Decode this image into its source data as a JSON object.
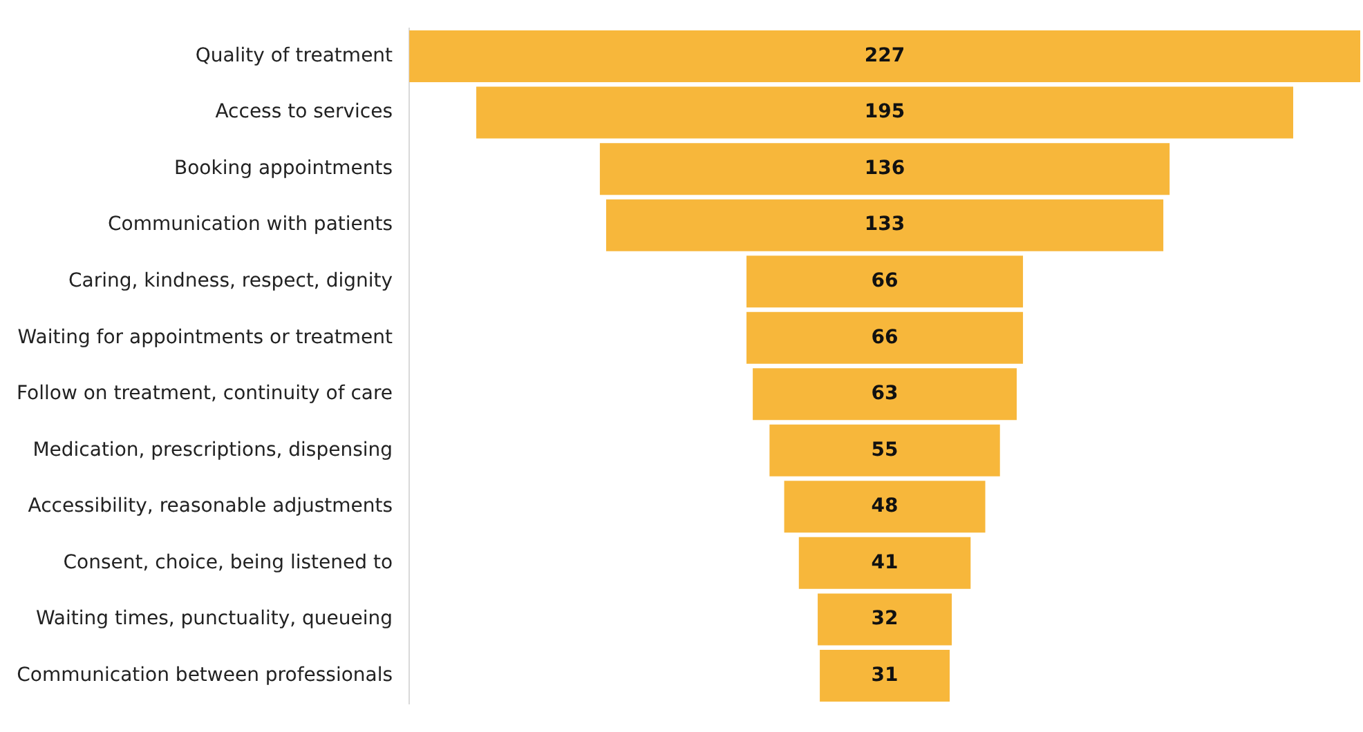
{
  "chart_data": {
    "type": "other",
    "categories": [
      "Quality of treatment",
      "Access to services",
      "Booking appointments",
      "Communication with patients",
      "Caring, kindness, respect, dignity",
      "Waiting for appointments or treatment",
      "Follow on treatment, continuity of care",
      "Medication, prescriptions, dispensing",
      "Accessibility, reasonable adjustments",
      "Consent, choice, being listened to",
      "Waiting times, punctuality, queueing",
      "Communication between professionals"
    ],
    "values": [
      227,
      195,
      136,
      133,
      66,
      66,
      63,
      55,
      48,
      41,
      32,
      31
    ],
    "color": "#f7b73b",
    "data_labels": true
  }
}
